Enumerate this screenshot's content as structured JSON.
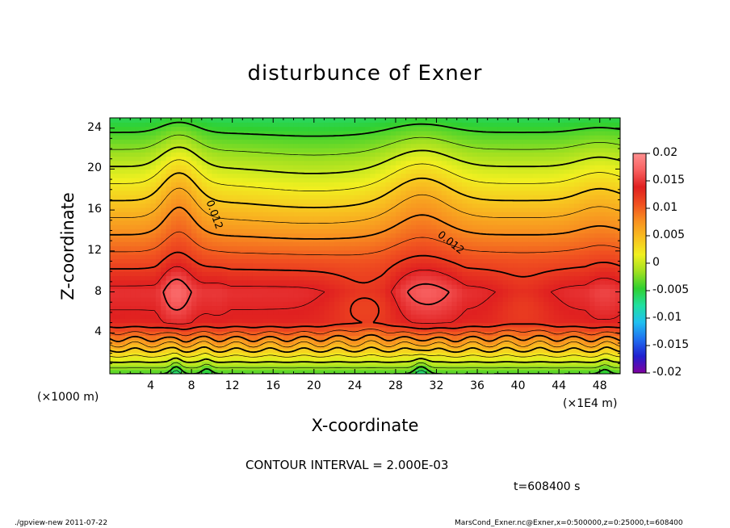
{
  "chart_data": {
    "type": "heatmap",
    "title": "disturbunce of Exner",
    "xlabel": "X-coordinate",
    "ylabel": "Z-coordinate",
    "x_unit_note": "(×1000 m)",
    "x_scale_note": "(×1E4 m)",
    "xlim": [
      0,
      50
    ],
    "ylim": [
      0,
      25
    ],
    "x_ticks": [
      "4",
      "8",
      "12",
      "16",
      "20",
      "24",
      "28",
      "32",
      "36",
      "40",
      "44",
      "48"
    ],
    "y_ticks": [
      "4",
      "8",
      "12",
      "16",
      "20",
      "24"
    ],
    "colorbar": {
      "min": -0.02,
      "max": 0.02,
      "ticks": [
        "0.02",
        "0.015",
        "0.01",
        "0.005",
        "0",
        "-0.005",
        "-0.01",
        "-0.015",
        "-0.02"
      ]
    },
    "contour_interval": "CONTOUR INTERVAL = 2.000E-03",
    "contour_labels": [
      "0.012",
      "0.012"
    ],
    "time_label": "t=608400 s"
  },
  "footer": {
    "left": "./gpview-new   2011-07-22",
    "right": "MarsCond_Exner.nc@Exner,x=0:500000,z=0:25000,t=608400"
  },
  "colors": {
    "colorbar_stops": [
      "#8000a0",
      "#2020d0",
      "#2070f0",
      "#20c0f0",
      "#20e0a0",
      "#30d030",
      "#a0e020",
      "#f0f020",
      "#f8c020",
      "#f89020",
      "#f05020",
      "#e02020",
      "#f86060",
      "#ff9090"
    ]
  }
}
